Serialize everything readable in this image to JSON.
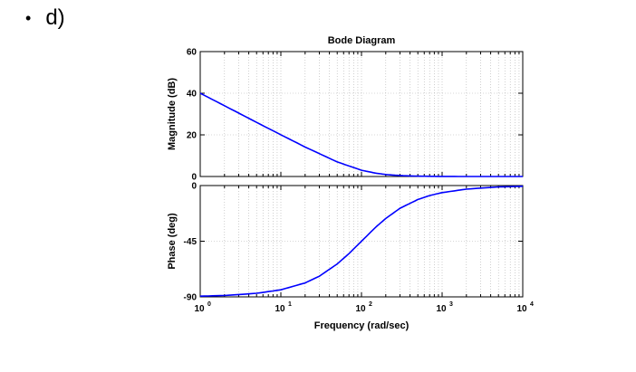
{
  "slide": {
    "bullet": "•",
    "label": "d)"
  },
  "chart_data": {
    "type": "line",
    "title": "Bode Diagram",
    "xlabel": "Frequency  (rad/sec)",
    "x_scale": "log",
    "xlim": [
      1,
      10000
    ],
    "x_ticks": [
      {
        "value": 1,
        "base": "10",
        "exp": "0"
      },
      {
        "value": 10,
        "base": "10",
        "exp": "1"
      },
      {
        "value": 100,
        "base": "10",
        "exp": "2"
      },
      {
        "value": 1000,
        "base": "10",
        "exp": "3"
      },
      {
        "value": 10000,
        "base": "10",
        "exp": "4"
      }
    ],
    "grid": true,
    "line_color": "#0000ff",
    "subplots": [
      {
        "ylabel": "Magnitude (dB)",
        "ylim": [
          0,
          60
        ],
        "yticks": [
          0,
          20,
          40,
          60
        ],
        "series": [
          {
            "x": [
              1,
              2,
              5,
              10,
              20,
              50,
              100,
              150,
              200,
              300,
              500,
              1000,
              2000,
              5000,
              10000
            ],
            "y": [
              40,
              34,
              26,
              20.04,
              14.15,
              7.0,
              3.01,
              1.6,
              0.97,
              0.46,
              0.17,
              0.04,
              0.01,
              0.0,
              0.0
            ]
          }
        ]
      },
      {
        "ylabel": "Phase (deg)",
        "ylim": [
          -90,
          0
        ],
        "yticks": [
          -90,
          -45,
          0
        ],
        "series": [
          {
            "x": [
              1,
              2,
              5,
              10,
              20,
              30,
              50,
              70,
              100,
              150,
              200,
              300,
              500,
              700,
              1000,
              2000,
              5000,
              10000
            ],
            "y": [
              -89.4,
              -88.9,
              -87.1,
              -84.3,
              -78.7,
              -73.3,
              -63.4,
              -55.0,
              -45.0,
              -33.7,
              -26.6,
              -18.4,
              -11.3,
              -8.1,
              -5.7,
              -2.9,
              -1.1,
              -0.6
            ]
          }
        ]
      }
    ]
  }
}
